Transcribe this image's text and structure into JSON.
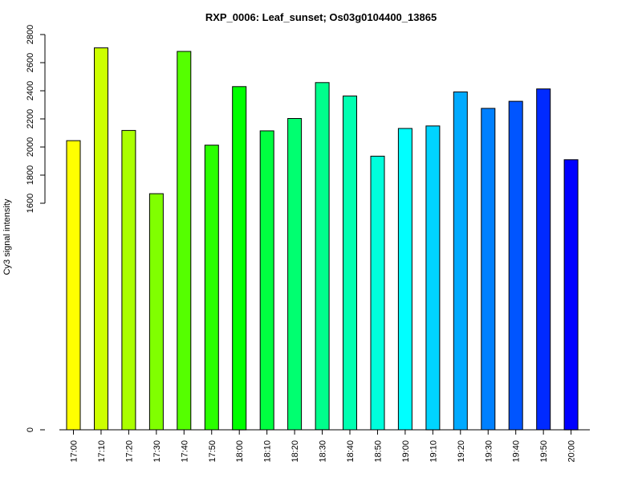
{
  "chart_data": {
    "type": "bar",
    "title": "RXP_0006: Leaf_sunset; Os03g0104400_13865",
    "xlabel": "",
    "ylabel": "Cy3 signal intensity",
    "categories": [
      "17:00",
      "17:10",
      "17:20",
      "17:30",
      "17:40",
      "17:50",
      "18:00",
      "18:10",
      "18:20",
      "18:30",
      "18:40",
      "18:50",
      "19:00",
      "19:10",
      "19:20",
      "19:30",
      "19:40",
      "19:50",
      "20:00"
    ],
    "values": [
      2045,
      2705,
      2118,
      1668,
      2680,
      2013,
      2430,
      2115,
      2203,
      2458,
      2363,
      1935,
      2132,
      2150,
      2392,
      2275,
      2325,
      2413,
      1910
    ],
    "colors": [
      "#FFFF00",
      "#CCFF00",
      "#AAFF00",
      "#80FF00",
      "#55FF00",
      "#2AFF00",
      "#00FF00",
      "#00FF40",
      "#00FF70",
      "#00FF8C",
      "#00FFB0",
      "#00FFDC",
      "#00FFFF",
      "#00D4FF",
      "#00AAFF",
      "#0080FF",
      "#0055FF",
      "#002AFF",
      "#0000FF"
    ],
    "y_ticks": [
      {
        "value": 0,
        "label": "0"
      },
      {
        "value": 1600,
        "label": "1600"
      },
      {
        "value": 1800,
        "label": "1800"
      },
      {
        "value": 2000,
        "label": "2000"
      },
      {
        "value": 2200,
        "label": "2200"
      },
      {
        "value": 2400,
        "label": "2400"
      },
      {
        "value": 2600,
        "label": "2600"
      },
      {
        "value": 2800,
        "label": "2800"
      }
    ],
    "ylim": [
      0,
      2800
    ],
    "grid": false,
    "legend": "none"
  }
}
